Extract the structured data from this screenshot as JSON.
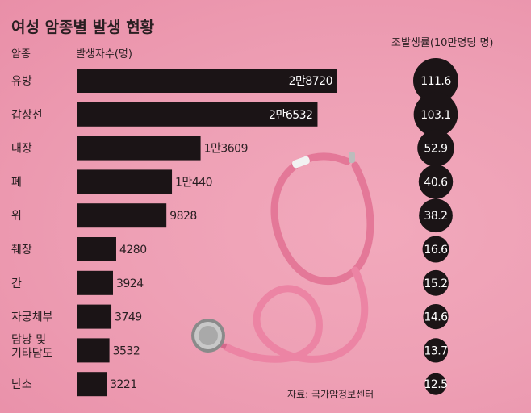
{
  "chart_data": {
    "type": "bar",
    "title": "여성 암종별 발생 현황",
    "category_header": "암종",
    "count_header": "발생자수(명)",
    "rate_header": "조발생률(10만명당 명)",
    "source": "자료: 국가암정보센터",
    "categories": [
      "유방",
      "갑상선",
      "대장",
      "폐",
      "위",
      "췌장",
      "간",
      "자궁체부",
      "담낭 및|기타담도",
      "난소"
    ],
    "series": [
      {
        "name": "발생자수(명)",
        "values": [
          28720,
          26532,
          13609,
          10440,
          9828,
          4280,
          3924,
          3749,
          3532,
          3221
        ],
        "labels": [
          "2만8720",
          "2만6532",
          "1만3609",
          "1만440",
          "9828",
          "4280",
          "3924",
          "3749",
          "3532",
          "3221"
        ]
      },
      {
        "name": "조발생률(10만명당 명)",
        "values": [
          111.6,
          103.1,
          52.9,
          40.6,
          38.2,
          16.6,
          15.2,
          14.6,
          13.7,
          12.5
        ],
        "labels": [
          "111.6",
          "103.1",
          "52.9",
          "40.6",
          "38.2",
          "16.6",
          "15.2",
          "14.6",
          "13.7",
          "12.5"
        ]
      }
    ],
    "colors": {
      "bar": "#1b1416",
      "background": "#ee9fb4",
      "stethoscope": "#ec7fa0"
    },
    "grid": false
  }
}
